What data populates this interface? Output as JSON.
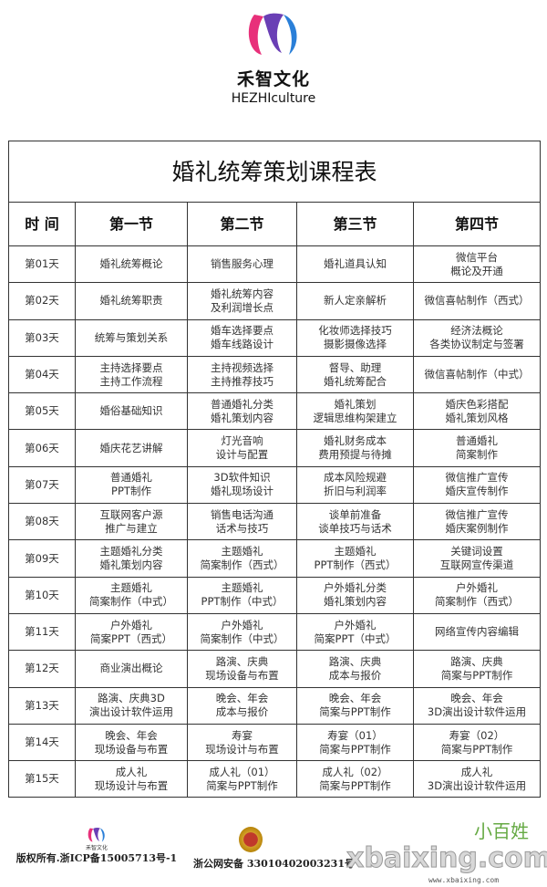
{
  "brand": {
    "name_cn": "禾智文化",
    "name_en": "HEZHIculture",
    "colors": [
      "#e8307a",
      "#6a3fb5",
      "#2a7fd8"
    ]
  },
  "table": {
    "title": "婚礼统筹策划课程表",
    "headers": [
      "时 间",
      "第一节",
      "第二节",
      "第三节",
      "第四节"
    ],
    "rows": [
      [
        "第01天",
        "婚礼统筹概论",
        "销售服务心理",
        "婚礼道具认知",
        "微信平台\n概论及开通"
      ],
      [
        "第02天",
        "婚礼统筹职责",
        "婚礼统筹内容\n及利润增长点",
        "新人定亲解析",
        "微信喜帖制作（西式）"
      ],
      [
        "第03天",
        "统筹与策划关系",
        "婚车选择要点\n婚车线路设计",
        "化妆师选择技巧\n摄影摄像选择",
        "经济法概论\n各类协议制定与签署"
      ],
      [
        "第04天",
        "主持选择要点\n主持工作流程",
        "主持视频选择\n主持推荐技巧",
        "督导、助理\n婚礼统筹配合",
        "微信喜帖制作（中式）"
      ],
      [
        "第05天",
        "婚俗基础知识",
        "普通婚礼分类\n婚礼策划内容",
        "婚礼策划\n逻辑思维构架建立",
        "婚庆色彩搭配\n婚礼策划风格"
      ],
      [
        "第06天",
        "婚庆花艺讲解",
        "灯光音响\n设计与配置",
        "婚礼财务成本\n费用预提与待摊",
        "普通婚礼\n简案制作"
      ],
      [
        "第07天",
        "普通婚礼\nPPT制作",
        "3D软件知识\n婚礼现场设计",
        "成本风险规避\n折旧与利润率",
        "微信推广宣传\n婚庆宣传制作"
      ],
      [
        "第08天",
        "互联网客户源\n推广与建立",
        "销售电话沟通\n话术与技巧",
        "谈单前准备\n谈单技巧与话术",
        "微信推广宣传\n婚庆案例制作"
      ],
      [
        "第09天",
        "主题婚礼分类\n婚礼策划内容",
        "主题婚礼\n简案制作（西式）",
        "主题婚礼\nPPT制作（西式）",
        "关键词设置\n互联网宣传渠道"
      ],
      [
        "第10天",
        "主题婚礼\n简案制作（中式）",
        "主题婚礼\nPPT制作（中式）",
        "户外婚礼分类\n婚礼策划内容",
        "户外婚礼\n简案制作（西式）"
      ],
      [
        "第11天",
        "户外婚礼\n简案PPT（西式）",
        "户外婚礼\n简案制作（中式）",
        "户外婚礼\n简案PPT（中式）",
        "网络宣传内容编辑"
      ],
      [
        "第12天",
        "商业演出概论",
        "路演、庆典\n现场设备与布置",
        "路演、庆典\n成本与报价",
        "路演、庆典\n简案与PPT制作"
      ],
      [
        "第13天",
        "路演、庆典3D\n演出设计软件运用",
        "晚会、年会\n成本与报价",
        "晚会、年会\n简案与PPT制作",
        "晚会、年会\n3D演出设计软件运用"
      ],
      [
        "第14天",
        "晚会、年会\n现场设备与布置",
        "寿宴\n现场设计与布置",
        "寿宴（01）\n简案与PPT制作",
        "寿宴（02）\n简案与PPT制作"
      ],
      [
        "第15天",
        "成人礼\n现场设计与布置",
        "成人礼（01）\n简案与PPT制作",
        "成人礼（02）\n简案与PPT制作",
        "成人礼\n3D演出设计软件运用"
      ]
    ]
  },
  "footer": {
    "copyright": "版权所有.浙ICP备15005713号-1",
    "police": "浙公网安备 33010402003231号",
    "watermark": "xbaixing.com",
    "watermark_cn": "小百姓",
    "watermark_url": "www.xbaixing.com"
  }
}
